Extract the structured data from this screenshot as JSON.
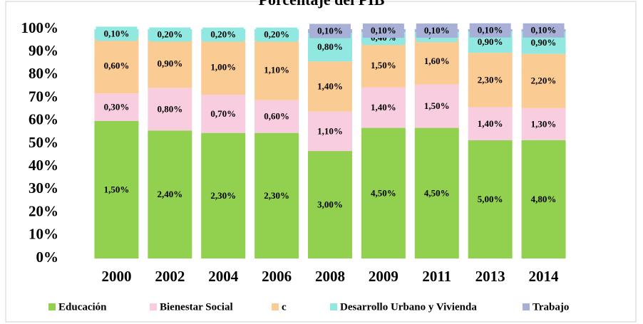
{
  "chart_data": {
    "type": "bar",
    "stacking": "percent",
    "title": "Porcentaje del PIB",
    "categories": [
      "2000",
      "2002",
      "2004",
      "2006",
      "2008",
      "2009",
      "2011",
      "2013",
      "2014"
    ],
    "series": [
      {
        "name": "Educación",
        "color": "#92d050",
        "values": [
          1.5,
          2.4,
          2.3,
          2.3,
          3.0,
          4.5,
          4.5,
          5.0,
          4.8
        ],
        "value_labels": [
          "1,50%",
          "2,40%",
          "2,30%",
          "2,30%",
          "3,00%",
          "4,50%",
          "4,50%",
          "5,00%",
          "4,80%"
        ]
      },
      {
        "name": "Bienestar Social",
        "color": "#f9cde0",
        "values": [
          0.3,
          0.8,
          0.7,
          0.6,
          1.1,
          1.4,
          1.5,
          1.4,
          1.3
        ],
        "value_labels": [
          "0,30%",
          "0,80%",
          "0,70%",
          "0,60%",
          "1,10%",
          "1,40%",
          "1,50%",
          "1,40%",
          "1,30%"
        ]
      },
      {
        "name": "c",
        "color": "#fbcb94",
        "values": [
          0.6,
          0.9,
          1.0,
          1.1,
          1.4,
          1.5,
          1.6,
          2.3,
          2.2
        ],
        "value_labels": [
          "0,60%",
          "0,90%",
          "1,00%",
          "1,10%",
          "1,40%",
          "1,50%",
          "1,60%",
          "2,30%",
          "2,20%"
        ]
      },
      {
        "name": "Desarrollo Urbano y Vivienda",
        "color": "#90e8e0",
        "values": [
          0.1,
          0.2,
          0.2,
          0.2,
          0.8,
          0.4,
          0.2,
          0.9,
          0.9
        ],
        "value_labels": [
          "0,10%",
          "0,20%",
          "0,20%",
          "0,20%",
          "0,80%",
          "0,40%",
          "0,20%",
          "0,90%",
          "0,90%"
        ]
      },
      {
        "name": "Trabajo",
        "color": "#a8b0d8",
        "values": [
          null,
          null,
          null,
          null,
          0.1,
          0.1,
          0.1,
          0.1,
          0.1
        ],
        "value_labels": [
          null,
          null,
          null,
          null,
          "0,10%",
          "0,10%",
          "0,10%",
          "0,10%",
          "0,10%"
        ]
      }
    ],
    "ylim": [
      0,
      100
    ],
    "yticks": [
      {
        "value": 0,
        "label": "0%"
      },
      {
        "value": 10,
        "label": "10%"
      },
      {
        "value": 20,
        "label": "20%"
      },
      {
        "value": 30,
        "label": "30%"
      },
      {
        "value": 40,
        "label": "40%"
      },
      {
        "value": 50,
        "label": "50%"
      },
      {
        "value": 60,
        "label": "60%"
      },
      {
        "value": 70,
        "label": "70%"
      },
      {
        "value": 80,
        "label": "80%"
      },
      {
        "value": 90,
        "label": "90%"
      },
      {
        "value": 100,
        "label": "100%"
      }
    ],
    "grid": false,
    "legend": "bottom"
  }
}
